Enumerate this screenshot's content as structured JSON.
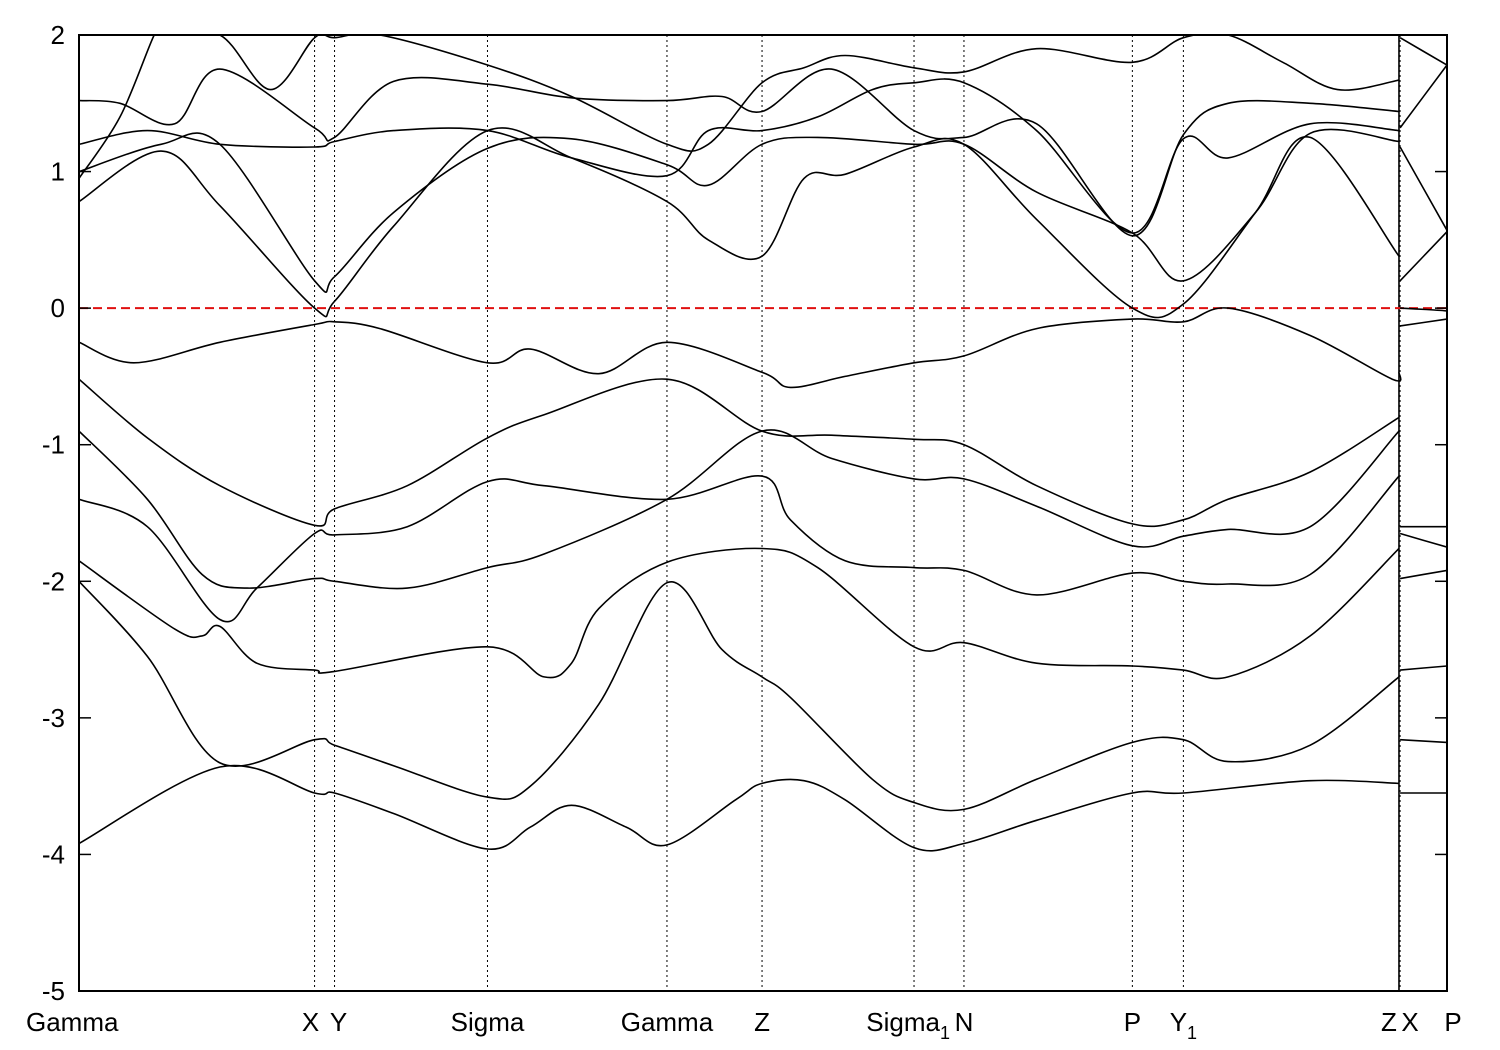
{
  "chart_data": {
    "type": "line",
    "title": "",
    "xlabel": "",
    "ylabel": "",
    "ylim": [
      -5,
      2
    ],
    "yticks": [
      -5,
      -4,
      -3,
      -2,
      -1,
      0,
      1,
      2
    ],
    "grid": "vertical dotted lines at high-symmetry points",
    "fermi_level": {
      "y": 0,
      "color": "#e01010",
      "style": "dashed"
    },
    "band_color": "#000000",
    "kpoints": [
      {
        "label": "Gamma",
        "sub": "",
        "x": 0.0
      },
      {
        "label": "X",
        "sub": "",
        "x": 0.1722
      },
      {
        "label": "Y",
        "sub": "",
        "x": 0.1868
      },
      {
        "label": "Sigma",
        "sub": "",
        "x": 0.2986
      },
      {
        "label": "Gamma",
        "sub": "",
        "x": 0.4298
      },
      {
        "label": "Z",
        "sub": "",
        "x": 0.4993
      },
      {
        "label": "Sigma",
        "sub": "1",
        "x": 0.6104
      },
      {
        "label": "N",
        "sub": "",
        "x": 0.6469
      },
      {
        "label": "P",
        "sub": "",
        "x": 0.77
      },
      {
        "label": "Y",
        "sub": "1",
        "x": 0.8073
      },
      {
        "label": "Z",
        "sub": "",
        "x": 0.9649
      },
      {
        "label": "X",
        "sub": "",
        "x": 0.9657
      },
      {
        "label": "P",
        "sub": "",
        "x": 1.0
      }
    ],
    "break_after_kpoint": 10,
    "series": [
      {
        "x": [
          0.0,
          0.103,
          0.1722,
          0.1868,
          0.23,
          0.2986,
          0.33,
          0.36,
          0.4,
          0.4298,
          0.48,
          0.4993,
          0.53,
          0.56,
          0.6104,
          0.6469,
          0.7,
          0.77,
          0.8073,
          0.9,
          0.9649
        ],
        "y": [
          -3.92,
          -3.36,
          -3.55,
          -3.55,
          -3.7,
          -3.96,
          -3.8,
          -3.64,
          -3.8,
          -3.93,
          -3.6,
          -3.48,
          -3.46,
          -3.6,
          -3.95,
          -3.92,
          -3.75,
          -3.55,
          -3.55,
          -3.46,
          -3.48
        ]
      },
      {
        "x": [
          0.9657,
          1.0
        ],
        "y": [
          -3.55,
          -3.55
        ]
      },
      {
        "x": [
          0.0,
          0.05,
          0.103,
          0.1722,
          0.1868,
          0.23,
          0.2986,
          0.33,
          0.38,
          0.4298,
          0.47,
          0.4993,
          0.52,
          0.58,
          0.6104,
          0.6469,
          0.7,
          0.77,
          0.8073,
          0.84,
          0.9,
          0.9649
        ],
        "y": [
          -2.0,
          -2.55,
          -3.33,
          -3.16,
          -3.2,
          -3.35,
          -3.58,
          -3.5,
          -2.9,
          -2.01,
          -2.5,
          -2.7,
          -2.85,
          -3.45,
          -3.62,
          -3.67,
          -3.45,
          -3.18,
          -3.16,
          -3.32,
          -3.2,
          -2.7
        ]
      },
      {
        "x": [
          0.9657,
          1.0
        ],
        "y": [
          -3.16,
          -3.18
        ]
      },
      {
        "x": [
          0.0,
          0.07,
          0.09,
          0.103,
          0.13,
          0.1722,
          0.1868,
          0.2986,
          0.34,
          0.36,
          0.38,
          0.4298,
          0.4993,
          0.54,
          0.6104,
          0.6469,
          0.7,
          0.77,
          0.8073,
          0.84,
          0.9,
          0.9649
        ],
        "y": [
          -1.85,
          -2.35,
          -2.4,
          -2.33,
          -2.6,
          -2.65,
          -2.66,
          -2.48,
          -2.7,
          -2.6,
          -2.2,
          -1.86,
          -1.76,
          -1.9,
          -2.48,
          -2.45,
          -2.6,
          -2.62,
          -2.65,
          -2.7,
          -2.4,
          -1.76
        ]
      },
      {
        "x": [
          0.9657,
          1.0
        ],
        "y": [
          -2.65,
          -2.62
        ]
      },
      {
        "x": [
          0.0,
          0.05,
          0.103,
          0.13,
          0.1722,
          0.1868,
          0.24,
          0.2986,
          0.34,
          0.4298,
          0.4993,
          0.52,
          0.56,
          0.6104,
          0.6469,
          0.7,
          0.77,
          0.8073,
          0.84,
          0.9,
          0.9649
        ],
        "y": [
          -1.4,
          -1.6,
          -2.28,
          -2.05,
          -1.65,
          -1.66,
          -1.6,
          -1.27,
          -1.3,
          -1.4,
          -1.23,
          -1.55,
          -1.85,
          -1.9,
          -1.92,
          -2.1,
          -1.94,
          -2.0,
          -2.02,
          -1.95,
          -1.23
        ]
      },
      {
        "x": [
          0.9657,
          1.0
        ],
        "y": [
          -1.65,
          -1.75
        ]
      },
      {
        "x": [
          0.0,
          0.05,
          0.09,
          0.123,
          0.1722,
          0.1868,
          0.24,
          0.2986,
          0.34,
          0.4298,
          0.4993,
          0.55,
          0.6104,
          0.6469,
          0.7,
          0.77,
          0.8073,
          0.84,
          0.9,
          0.9649
        ],
        "y": [
          -0.9,
          -1.4,
          -1.95,
          -2.05,
          -1.98,
          -2.0,
          -2.05,
          -1.9,
          -1.8,
          -1.4,
          -0.9,
          -1.1,
          -1.25,
          -1.25,
          -1.45,
          -1.74,
          -1.67,
          -1.62,
          -1.6,
          -0.9
        ]
      },
      {
        "x": [
          0.9657,
          1.0
        ],
        "y": [
          -1.98,
          -1.92
        ]
      },
      {
        "x": [
          0.0,
          0.05,
          0.103,
          0.1722,
          0.1868,
          0.24,
          0.2986,
          0.34,
          0.4298,
          0.4993,
          0.55,
          0.6104,
          0.6469,
          0.7,
          0.77,
          0.8073,
          0.84,
          0.9,
          0.9649
        ],
        "y": [
          -0.52,
          -0.95,
          -1.3,
          -1.59,
          -1.47,
          -1.3,
          -0.95,
          -0.78,
          -0.52,
          -0.9,
          -0.93,
          -0.96,
          -1.0,
          -1.3,
          -1.58,
          -1.55,
          -1.4,
          -1.2,
          -0.8
        ]
      },
      {
        "x": [
          0.9657,
          1.0
        ],
        "y": [
          -1.6,
          -1.6
        ]
      },
      {
        "x": [
          0.0,
          0.04,
          0.103,
          0.1722,
          0.1868,
          0.22,
          0.2986,
          0.33,
          0.38,
          0.4298,
          0.4993,
          0.52,
          0.56,
          0.6104,
          0.6469,
          0.7,
          0.77,
          0.8073,
          0.84,
          0.9,
          0.96,
          0.9649
        ],
        "y": [
          -0.25,
          -0.4,
          -0.25,
          -0.12,
          -0.1,
          -0.15,
          -0.4,
          -0.3,
          -0.48,
          -0.25,
          -0.47,
          -0.58,
          -0.5,
          -0.4,
          -0.35,
          -0.15,
          -0.08,
          -0.1,
          0.0,
          -0.2,
          -0.52,
          -0.47
        ]
      },
      {
        "x": [
          0.9657,
          1.0
        ],
        "y": [
          -0.13,
          -0.08
        ]
      },
      {
        "x": [
          0.0,
          0.06,
          0.103,
          0.1722,
          0.1868,
          0.23,
          0.2986,
          0.36,
          0.4298,
          0.46,
          0.4993,
          0.53,
          0.56,
          0.6104,
          0.6469,
          0.7,
          0.77,
          0.8073,
          0.86,
          0.9,
          0.9649
        ],
        "y": [
          0.78,
          1.15,
          0.75,
          0.0,
          0.05,
          0.6,
          1.3,
          1.1,
          0.78,
          0.5,
          0.38,
          0.95,
          0.98,
          1.18,
          1.2,
          0.65,
          0.0,
          0.03,
          0.7,
          1.25,
          0.38
        ]
      },
      {
        "x": [
          0.9657,
          0.985,
          1.0
        ],
        "y": [
          0.0,
          -0.01,
          -0.02
        ]
      },
      {
        "x": [
          0.0,
          0.06,
          0.103,
          0.1722,
          0.1868,
          0.23,
          0.2986,
          0.36,
          0.4298,
          0.46,
          0.4993,
          0.54,
          0.6104,
          0.6469,
          0.7,
          0.77,
          0.8073,
          0.86,
          0.9,
          0.9649
        ],
        "y": [
          1.0,
          1.2,
          1.2,
          0.2,
          0.23,
          0.7,
          1.17,
          1.24,
          1.05,
          0.9,
          1.2,
          1.25,
          1.2,
          1.2,
          0.85,
          0.55,
          0.2,
          0.7,
          1.28,
          1.22
        ]
      },
      {
        "x": [
          0.9657,
          1.0
        ],
        "y": [
          0.2,
          0.56
        ]
      },
      {
        "x": [
          0.0,
          0.05,
          0.103,
          0.1722,
          0.1868,
          0.23,
          0.2986,
          0.36,
          0.4298,
          0.46,
          0.4993,
          0.54,
          0.58,
          0.6104,
          0.6469,
          0.7,
          0.77,
          0.8073,
          0.84,
          0.9,
          0.9649
        ],
        "y": [
          1.2,
          1.3,
          1.2,
          1.18,
          1.22,
          1.3,
          1.3,
          1.1,
          0.97,
          1.3,
          1.3,
          1.4,
          1.6,
          1.65,
          1.65,
          1.3,
          0.55,
          1.24,
          1.1,
          1.35,
          1.3
        ]
      },
      {
        "x": [
          0.9657,
          1.0
        ],
        "y": [
          1.18,
          0.57
        ]
      },
      {
        "x": [
          0.0,
          0.03,
          0.07,
          0.103,
          0.1722,
          0.1868,
          0.23,
          0.2986,
          0.36,
          0.4298,
          0.47,
          0.4993,
          0.55,
          0.6104,
          0.6469,
          0.7,
          0.77,
          0.8073,
          0.84,
          0.9,
          0.9649
        ],
        "y": [
          1.52,
          1.5,
          1.35,
          1.75,
          1.32,
          1.25,
          1.66,
          1.64,
          1.54,
          1.52,
          1.55,
          1.44,
          1.75,
          1.3,
          1.25,
          1.35,
          0.53,
          1.27,
          1.5,
          1.5,
          1.44
        ]
      },
      {
        "x": [
          0.9657,
          1.0
        ],
        "y": [
          1.32,
          1.78
        ]
      },
      {
        "x": [
          0.0,
          0.03,
          0.055,
          0.06,
          0.103,
          0.14,
          0.1722,
          0.1868,
          0.22,
          0.2986,
          0.36,
          0.4298,
          0.46,
          0.4993,
          0.53,
          0.56,
          0.6104,
          0.6469,
          0.7,
          0.77,
          0.8073,
          0.84,
          0.88,
          0.92,
          0.9649
        ],
        "y": [
          0.95,
          1.4,
          2.0,
          2.0,
          2.0,
          1.6,
          1.98,
          1.98,
          2.0,
          1.78,
          1.55,
          1.2,
          1.2,
          1.65,
          1.76,
          1.85,
          1.76,
          1.73,
          1.9,
          1.8,
          1.98,
          2.0,
          1.8,
          1.6,
          1.67
        ]
      },
      {
        "x": [
          0.9657,
          1.0
        ],
        "y": [
          1.98,
          1.78
        ]
      }
    ]
  }
}
